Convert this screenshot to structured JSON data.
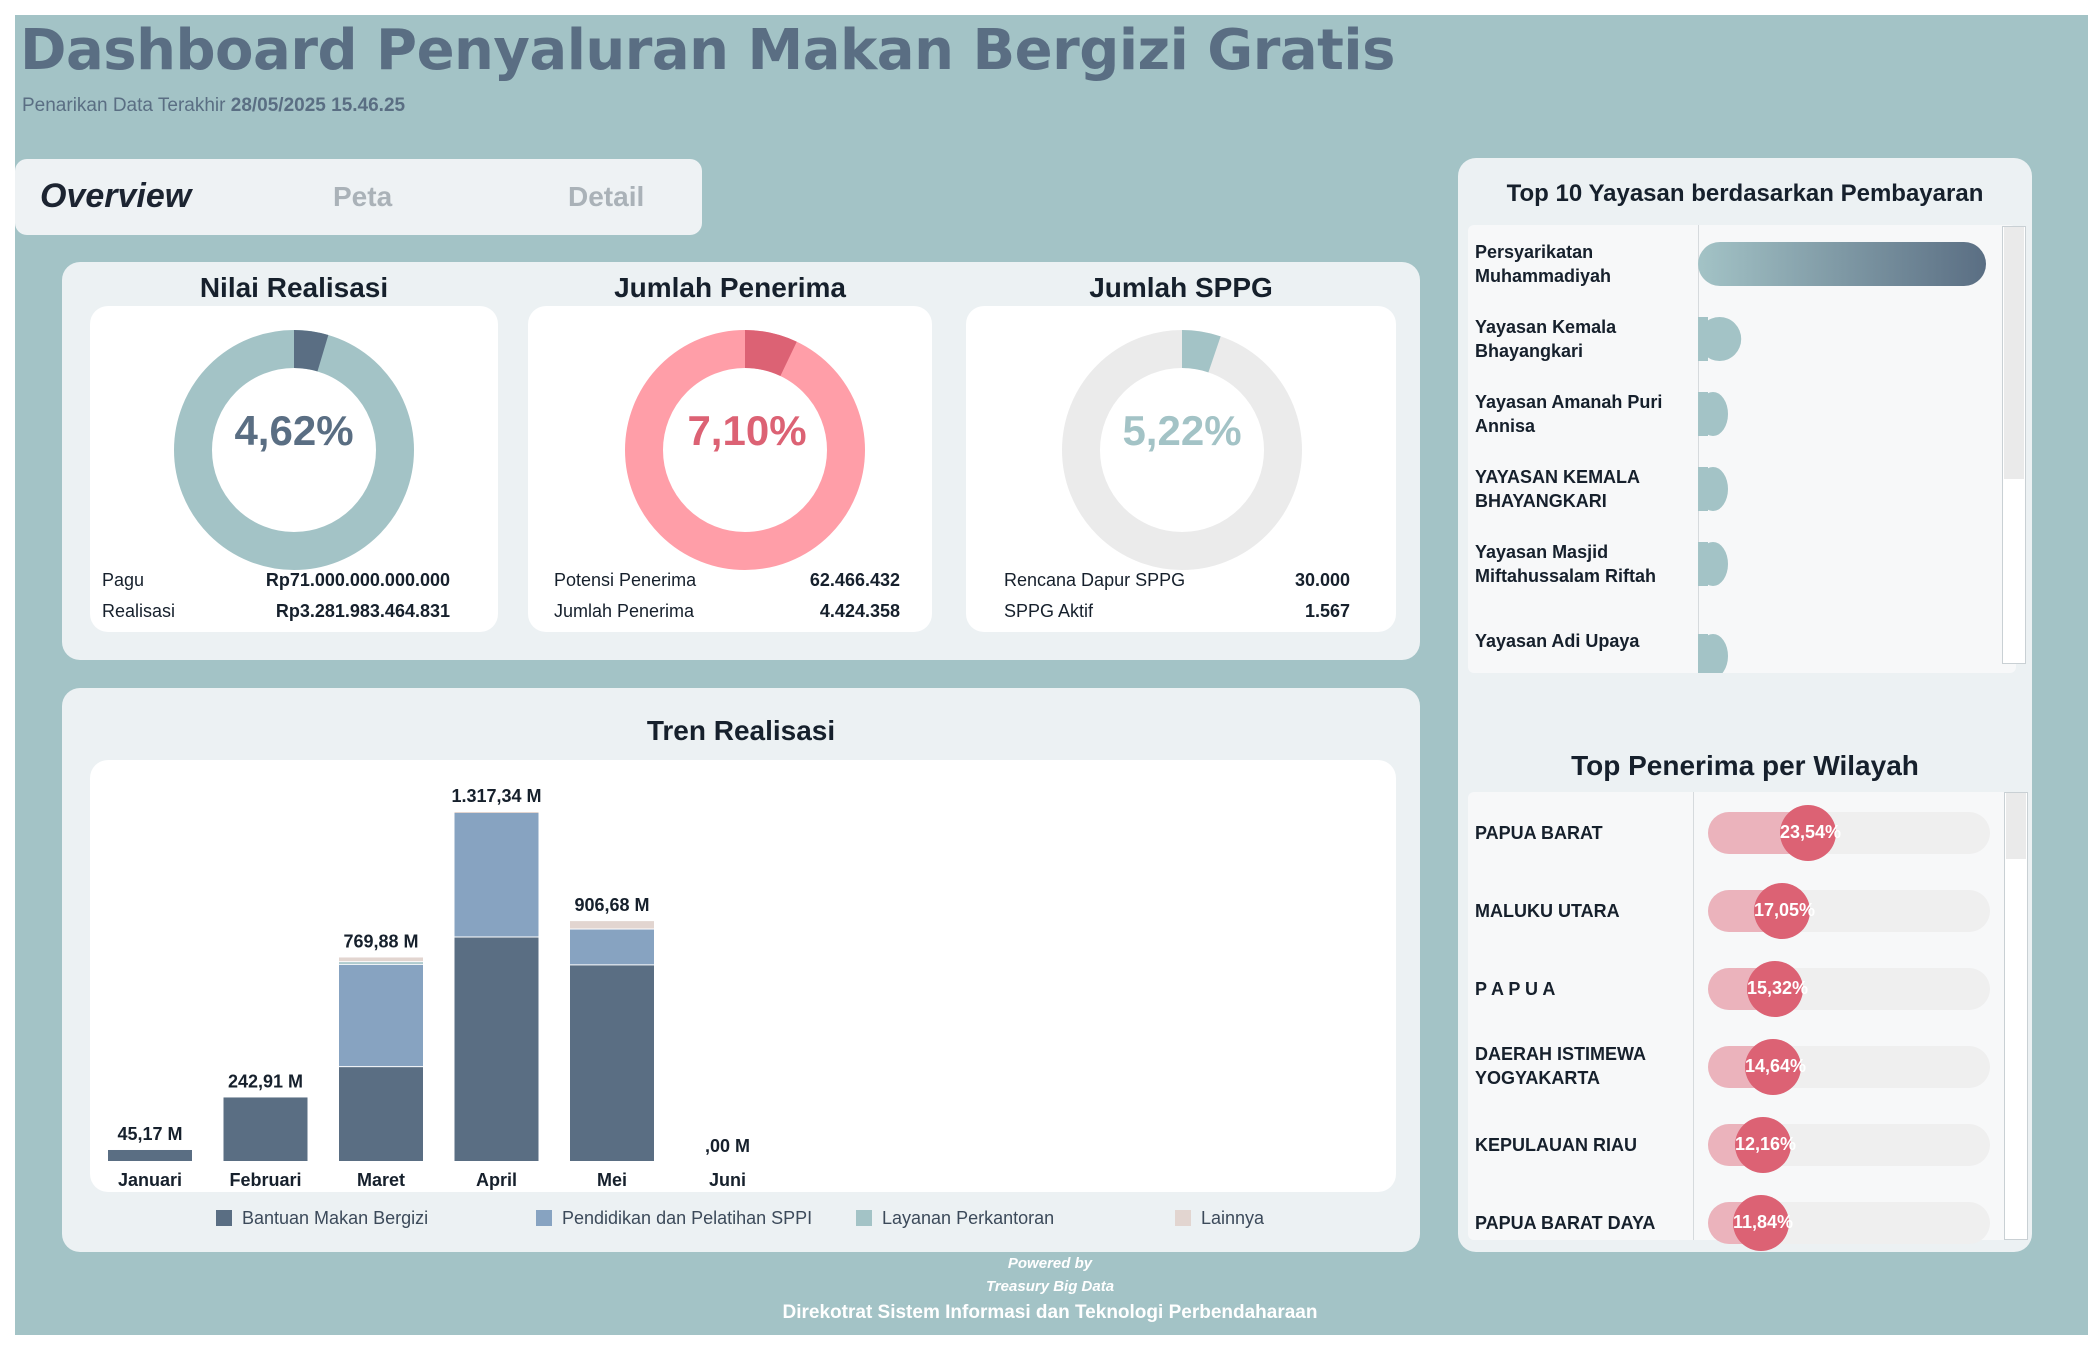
{
  "header": {
    "title": "Dashboard Penyaluran Makan Bergizi Gratis",
    "last_pull_label": "Penarikan Data Terakhir",
    "last_pull_value": "28/05/2025 15.46.25"
  },
  "tabs": [
    {
      "label": "Overview",
      "active": true
    },
    {
      "label": "Peta",
      "active": false
    },
    {
      "label": "Detail",
      "active": false
    }
  ],
  "kpis": [
    {
      "title": "Nilai Realisasi",
      "percent_label": "4,62%",
      "percent": 0.0462,
      "color": "#5a6e83",
      "track": "#a3c3c6",
      "rows": [
        {
          "label": "Pagu",
          "value": "Rp71.000.000.000.000"
        },
        {
          "label": "Realisasi",
          "value": "Rp3.281.983.464.831"
        }
      ]
    },
    {
      "title": "Jumlah Penerima",
      "percent_label": "7,10%",
      "percent": 0.071,
      "color": "#dc6274",
      "track": "#ff9ea8",
      "rows": [
        {
          "label": "Potensi Penerima",
          "value": "62.466.432"
        },
        {
          "label": "Jumlah Penerima",
          "value": "4.424.358"
        }
      ]
    },
    {
      "title": "Jumlah SPPG",
      "percent_label": "5,22%",
      "percent": 0.0522,
      "color": "#a3c3c6",
      "track": "#ebebeb",
      "rows": [
        {
          "label": "Rencana Dapur SPPG",
          "value": "30.000"
        },
        {
          "label": "SPPG Aktif",
          "value": "1.567"
        }
      ]
    }
  ],
  "trend": {
    "title": "Tren Realisasi",
    "legend": [
      {
        "name": "Bantuan Makan Bergizi",
        "color": "#5a6e83"
      },
      {
        "name": "Pendidikan dan Pelatihan SPPI",
        "color": "#87a3c1"
      },
      {
        "name": "Layanan Perkantoran",
        "color": "#a3c3c6"
      },
      {
        "name": "Lainnya",
        "color": "#e2d5d0"
      }
    ]
  },
  "chart_data": {
    "type": "bar",
    "stacked": true,
    "categories": [
      "Januari",
      "Februari",
      "Maret",
      "April",
      "Mei",
      "Juni"
    ],
    "totals_label": [
      "45,17 M",
      "242,91 M",
      "769,88 M",
      "1.317,34 M",
      "906,68 M",
      ",00 M"
    ],
    "series": [
      {
        "name": "Bantuan Makan Bergizi",
        "values": [
          45.17,
          242.91,
          357,
          845,
          740,
          0
        ]
      },
      {
        "name": "Pendidikan dan Pelatihan SPPI",
        "values": [
          0,
          0,
          385,
          472,
          135,
          0
        ]
      },
      {
        "name": "Layanan Perkantoran",
        "values": [
          0,
          0,
          10,
          0,
          0,
          0
        ]
      },
      {
        "name": "Lainnya",
        "values": [
          0,
          0,
          17.88,
          0.34,
          31.68,
          0
        ]
      }
    ],
    "ylim": [
      0,
      1400
    ]
  },
  "top_yayasan": {
    "title": "Top 10 Yayasan berdasarkan Pembayaran",
    "items": [
      {
        "name": "Persyarikatan Muhammadiyah",
        "value": 1.0
      },
      {
        "name": "Yayasan Kemala Bhayangkari",
        "value": 0.15
      },
      {
        "name": "Yayasan Amanah Puri Annisa",
        "value": 0.1
      },
      {
        "name": "YAYASAN KEMALA BHAYANGKARI",
        "value": 0.1
      },
      {
        "name": "Yayasan Masjid Miftahussalam Riftah",
        "value": 0.1
      },
      {
        "name": "Yayasan Adi Upaya",
        "value": 0.1
      }
    ]
  },
  "top_wilayah": {
    "title": "Top Penerima per Wilayah",
    "items": [
      {
        "name": "PAPUA BARAT",
        "pct_label": "23,54%",
        "pct": 0.2354
      },
      {
        "name": "MALUKU UTARA",
        "pct_label": "17,05%",
        "pct": 0.1705
      },
      {
        "name": "P A P U A",
        "pct_label": "15,32%",
        "pct": 0.1532
      },
      {
        "name": "DAERAH ISTIMEWA YOGYAKARTA",
        "pct_label": "14,64%",
        "pct": 0.1464
      },
      {
        "name": "KEPULAUAN RIAU",
        "pct_label": "12,16%",
        "pct": 0.1216
      },
      {
        "name": "PAPUA BARAT DAYA",
        "pct_label": "11,84%",
        "pct": 0.1184
      }
    ]
  },
  "footer": {
    "powered": "Powered by",
    "brand": "Treasury Big Data",
    "org": "Direkotrat Sistem Informasi dan Teknologi Perbendaharaan"
  }
}
